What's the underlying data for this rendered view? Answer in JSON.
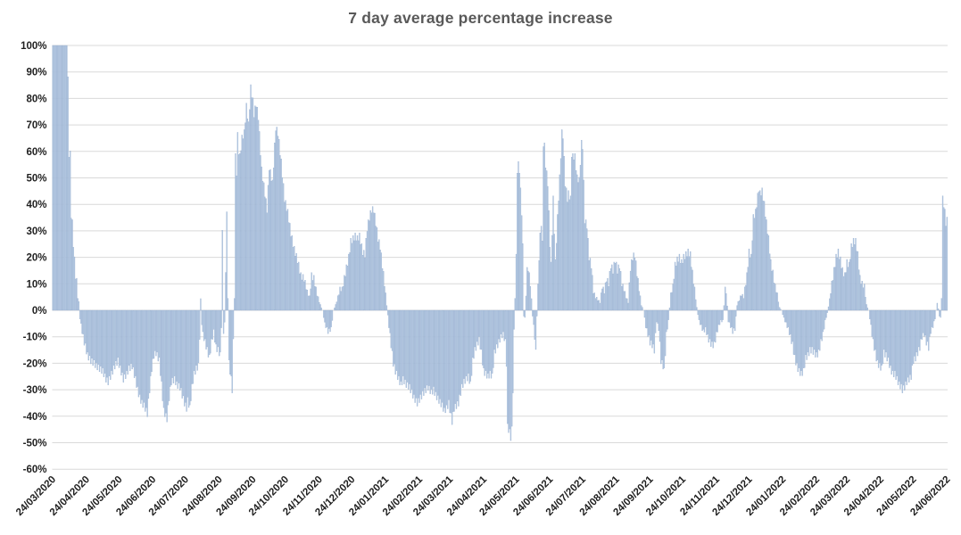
{
  "chart_data": {
    "type": "bar",
    "title": "7 day average percentage increase",
    "series_name": "7 day average percentage increase",
    "xlabel": "",
    "ylabel": "",
    "ylim": [
      -60,
      100
    ],
    "y_step_pct": 10,
    "y_tick_labels": [
      "100%",
      "90%",
      "80%",
      "70%",
      "60%",
      "50%",
      "40%",
      "30%",
      "20%",
      "10%",
      "0%",
      "-10%",
      "-20%",
      "-30%",
      "-40%",
      "-50%",
      "-60%"
    ],
    "x_tick_labels": [
      "24/03/2020",
      "24/04/2020",
      "24/05/2020",
      "24/06/2020",
      "24/07/2020",
      "24/08/2020",
      "24/09/2020",
      "24/10/2020",
      "24/11/2020",
      "24/12/2020",
      "24/01/2021",
      "24/02/2021",
      "24/03/2021",
      "24/04/2021",
      "24/05/2021",
      "24/06/2021",
      "24/07/2021",
      "24/08/2021",
      "24/09/2021",
      "24/10/2021",
      "24/11/2021",
      "24/12/2021",
      "24/01/2022",
      "24/02/2022",
      "24/03/2022",
      "24/04/2022",
      "24/05/2022",
      "24/06/2022"
    ],
    "x_start_date": "24/03/2020",
    "x_end_date": "24/06/2022",
    "x_frequency": "daily",
    "num_points": 823,
    "grid": true,
    "legend_position": "none",
    "clipped_at_top_note": "first 14 daily bars exceed the axis maximum and are clipped at 100%",
    "interpolation_note": "percent values read from chart; daily bars linearly interpolated between keypoints [day_index, percent]",
    "daily_keypoints": [
      [
        0,
        100
      ],
      [
        13,
        100
      ],
      [
        14,
        87
      ],
      [
        15,
        59
      ],
      [
        16,
        59
      ],
      [
        17,
        36
      ],
      [
        18,
        33
      ],
      [
        19,
        25
      ],
      [
        20,
        19
      ],
      [
        21,
        13
      ],
      [
        22,
        11
      ],
      [
        23,
        5
      ],
      [
        24,
        3
      ],
      [
        25,
        -3
      ],
      [
        27,
        -8
      ],
      [
        29,
        -12
      ],
      [
        32,
        -17
      ],
      [
        35,
        -19
      ],
      [
        38,
        -20
      ],
      [
        40,
        -21
      ],
      [
        43,
        -22
      ],
      [
        46,
        -23
      ],
      [
        49,
        -26
      ],
      [
        51,
        -27
      ],
      [
        54,
        -24
      ],
      [
        57,
        -21
      ],
      [
        60,
        -19
      ],
      [
        62,
        -22
      ],
      [
        65,
        -26
      ],
      [
        68,
        -24
      ],
      [
        70,
        -22
      ],
      [
        73,
        -21
      ],
      [
        76,
        -26
      ],
      [
        78,
        -30
      ],
      [
        80,
        -33
      ],
      [
        82,
        -35
      ],
      [
        84,
        -36
      ],
      [
        87,
        -39
      ],
      [
        89,
        -30
      ],
      [
        91,
        -22
      ],
      [
        93,
        -17
      ],
      [
        95,
        -16
      ],
      [
        98,
        -19
      ],
      [
        100,
        -28
      ],
      [
        102,
        -38
      ],
      [
        105,
        -41
      ],
      [
        107,
        -33
      ],
      [
        109,
        -27
      ],
      [
        112,
        -26
      ],
      [
        114,
        -28
      ],
      [
        117,
        -29
      ],
      [
        119,
        -32
      ],
      [
        121,
        -35
      ],
      [
        123,
        -37
      ],
      [
        124,
        -34
      ],
      [
        126,
        -37
      ],
      [
        128,
        -29
      ],
      [
        130,
        -24
      ],
      [
        132,
        -22
      ],
      [
        134,
        -21
      ],
      [
        135,
        -10
      ],
      [
        136,
        4
      ],
      [
        137,
        -5
      ],
      [
        138,
        -9
      ],
      [
        140,
        -12
      ],
      [
        142,
        -15
      ],
      [
        144,
        -18
      ],
      [
        146,
        -12
      ],
      [
        148,
        -8
      ],
      [
        149,
        -11
      ],
      [
        150,
        -14
      ],
      [
        152,
        -15
      ],
      [
        154,
        -17
      ],
      [
        155,
        -6
      ],
      [
        156,
        29
      ],
      [
        157,
        -8
      ],
      [
        158,
        -5
      ],
      [
        160,
        36
      ],
      [
        161,
        5
      ],
      [
        162,
        -20
      ],
      [
        164,
        -26
      ],
      [
        165,
        -30
      ],
      [
        166,
        -12
      ],
      [
        167,
        5
      ],
      [
        168,
        58
      ],
      [
        169,
        52
      ],
      [
        170,
        66
      ],
      [
        171,
        60
      ],
      [
        172,
        58
      ],
      [
        174,
        65
      ],
      [
        176,
        67
      ],
      [
        178,
        77
      ],
      [
        180,
        70
      ],
      [
        182,
        84
      ],
      [
        184,
        79
      ],
      [
        185,
        74
      ],
      [
        187,
        78
      ],
      [
        189,
        73
      ],
      [
        192,
        53
      ],
      [
        195,
        44
      ],
      [
        197,
        38
      ],
      [
        199,
        54
      ],
      [
        202,
        48
      ],
      [
        205,
        69
      ],
      [
        207,
        67
      ],
      [
        210,
        56
      ],
      [
        213,
        42
      ],
      [
        216,
        37
      ],
      [
        219,
        29
      ],
      [
        222,
        23
      ],
      [
        225,
        19
      ],
      [
        228,
        13
      ],
      [
        231,
        12
      ],
      [
        234,
        7
      ],
      [
        236,
        5
      ],
      [
        238,
        13
      ],
      [
        240,
        12
      ],
      [
        243,
        6
      ],
      [
        246,
        2
      ],
      [
        248,
        0
      ],
      [
        250,
        -5
      ],
      [
        253,
        -8
      ],
      [
        256,
        -7
      ],
      [
        258,
        0
      ],
      [
        260,
        2
      ],
      [
        262,
        5
      ],
      [
        264,
        8
      ],
      [
        266,
        8
      ],
      [
        268,
        12
      ],
      [
        270,
        16
      ],
      [
        272,
        20
      ],
      [
        274,
        26
      ],
      [
        276,
        27
      ],
      [
        278,
        28
      ],
      [
        280,
        27
      ],
      [
        282,
        28
      ],
      [
        285,
        22
      ],
      [
        287,
        21
      ],
      [
        289,
        31
      ],
      [
        291,
        35
      ],
      [
        293,
        38
      ],
      [
        295,
        38
      ],
      [
        297,
        33
      ],
      [
        299,
        27
      ],
      [
        301,
        24
      ],
      [
        303,
        17
      ],
      [
        305,
        10
      ],
      [
        307,
        2
      ],
      [
        309,
        -6
      ],
      [
        311,
        -13
      ],
      [
        313,
        -20
      ],
      [
        315,
        -23
      ],
      [
        317,
        -25
      ],
      [
        320,
        -28
      ],
      [
        322,
        -26
      ],
      [
        325,
        -28
      ],
      [
        328,
        -29
      ],
      [
        332,
        -33
      ],
      [
        335,
        -35
      ],
      [
        338,
        -33
      ],
      [
        341,
        -31
      ],
      [
        345,
        -29
      ],
      [
        348,
        -31
      ],
      [
        350,
        -30
      ],
      [
        352,
        -32
      ],
      [
        355,
        -34
      ],
      [
        358,
        -36
      ],
      [
        360,
        -38
      ],
      [
        362,
        -37
      ],
      [
        364,
        -35
      ],
      [
        366,
        -40
      ],
      [
        367,
        -42
      ],
      [
        369,
        -37
      ],
      [
        371,
        -36
      ],
      [
        373,
        -35
      ],
      [
        376,
        -29
      ],
      [
        378,
        -27
      ],
      [
        380,
        -26
      ],
      [
        382,
        -25
      ],
      [
        384,
        -28
      ],
      [
        386,
        -19
      ],
      [
        388,
        -15
      ],
      [
        390,
        -13
      ],
      [
        392,
        -11
      ],
      [
        394,
        -16
      ],
      [
        396,
        -23
      ],
      [
        398,
        -24
      ],
      [
        400,
        -25
      ],
      [
        402,
        -24
      ],
      [
        404,
        -25
      ],
      [
        406,
        -16
      ],
      [
        408,
        -14
      ],
      [
        410,
        -12
      ],
      [
        412,
        -10
      ],
      [
        414,
        -9
      ],
      [
        416,
        -12
      ],
      [
        417,
        -20
      ],
      [
        418,
        -44
      ],
      [
        419,
        -45
      ],
      [
        420,
        -46
      ],
      [
        421,
        -48
      ],
      [
        422,
        -45
      ],
      [
        423,
        -30
      ],
      [
        424,
        -8
      ],
      [
        425,
        5
      ],
      [
        426,
        20
      ],
      [
        427,
        53
      ],
      [
        428,
        55
      ],
      [
        429,
        53
      ],
      [
        430,
        45
      ],
      [
        431,
        37
      ],
      [
        432,
        24
      ],
      [
        433,
        -2
      ],
      [
        434,
        -3
      ],
      [
        436,
        15
      ],
      [
        437,
        16
      ],
      [
        439,
        10
      ],
      [
        441,
        -2
      ],
      [
        443,
        -10
      ],
      [
        444,
        -16
      ],
      [
        445,
        -2
      ],
      [
        447,
        20
      ],
      [
        448,
        28
      ],
      [
        449,
        33
      ],
      [
        450,
        25
      ],
      [
        451,
        63
      ],
      [
        452,
        62
      ],
      [
        453,
        55
      ],
      [
        455,
        48
      ],
      [
        457,
        25
      ],
      [
        458,
        17
      ],
      [
        460,
        42
      ],
      [
        461,
        30
      ],
      [
        462,
        18
      ],
      [
        464,
        35
      ],
      [
        466,
        50
      ],
      [
        468,
        67
      ],
      [
        469,
        66
      ],
      [
        471,
        48
      ],
      [
        473,
        42
      ],
      [
        474,
        44
      ],
      [
        476,
        42
      ],
      [
        477,
        59
      ],
      [
        478,
        58
      ],
      [
        480,
        58
      ],
      [
        482,
        50
      ],
      [
        484,
        49
      ],
      [
        486,
        63
      ],
      [
        487,
        62
      ],
      [
        489,
        34
      ],
      [
        491,
        32
      ],
      [
        493,
        20
      ],
      [
        495,
        17
      ],
      [
        497,
        7
      ],
      [
        499,
        5
      ],
      [
        501,
        4
      ],
      [
        503,
        3
      ],
      [
        505,
        9
      ],
      [
        507,
        7
      ],
      [
        509,
        12
      ],
      [
        511,
        10
      ],
      [
        513,
        17
      ],
      [
        515,
        15
      ],
      [
        517,
        19
      ],
      [
        519,
        15
      ],
      [
        521,
        17
      ],
      [
        523,
        10
      ],
      [
        525,
        8
      ],
      [
        527,
        5
      ],
      [
        529,
        3
      ],
      [
        531,
        16
      ],
      [
        533,
        20
      ],
      [
        535,
        21
      ],
      [
        537,
        14
      ],
      [
        539,
        8
      ],
      [
        541,
        2
      ],
      [
        543,
        0
      ],
      [
        545,
        -6
      ],
      [
        547,
        -9
      ],
      [
        549,
        -12
      ],
      [
        551,
        -13
      ],
      [
        553,
        -15
      ],
      [
        555,
        -4
      ],
      [
        557,
        -7
      ],
      [
        559,
        -19
      ],
      [
        561,
        -21
      ],
      [
        562,
        -23
      ],
      [
        564,
        -9
      ],
      [
        566,
        -4
      ],
      [
        568,
        6
      ],
      [
        570,
        9
      ],
      [
        572,
        17
      ],
      [
        574,
        19
      ],
      [
        576,
        20
      ],
      [
        578,
        18
      ],
      [
        580,
        20
      ],
      [
        582,
        21
      ],
      [
        584,
        22
      ],
      [
        586,
        21
      ],
      [
        588,
        14
      ],
      [
        590,
        8
      ],
      [
        592,
        1
      ],
      [
        594,
        -4
      ],
      [
        596,
        -6
      ],
      [
        598,
        -8
      ],
      [
        600,
        -7
      ],
      [
        602,
        -10
      ],
      [
        604,
        -12
      ],
      [
        606,
        -13
      ],
      [
        608,
        -13
      ],
      [
        610,
        -9
      ],
      [
        612,
        -6
      ],
      [
        614,
        -4
      ],
      [
        616,
        -4
      ],
      [
        618,
        8
      ],
      [
        619,
        7
      ],
      [
        621,
        -4
      ],
      [
        623,
        -6
      ],
      [
        625,
        -8
      ],
      [
        627,
        -7
      ],
      [
        629,
        2
      ],
      [
        631,
        4
      ],
      [
        633,
        6
      ],
      [
        635,
        5
      ],
      [
        636,
        8
      ],
      [
        638,
        13
      ],
      [
        640,
        22
      ],
      [
        642,
        20
      ],
      [
        644,
        35
      ],
      [
        646,
        37
      ],
      [
        648,
        43
      ],
      [
        649,
        46
      ],
      [
        650,
        44
      ],
      [
        652,
        45
      ],
      [
        654,
        40
      ],
      [
        656,
        33
      ],
      [
        658,
        27
      ],
      [
        660,
        18
      ],
      [
        662,
        14
      ],
      [
        664,
        9
      ],
      [
        666,
        6
      ],
      [
        668,
        1
      ],
      [
        670,
        0
      ],
      [
        672,
        -3
      ],
      [
        674,
        -5
      ],
      [
        676,
        -7
      ],
      [
        678,
        -10
      ],
      [
        680,
        -13
      ],
      [
        682,
        -18
      ],
      [
        684,
        -21
      ],
      [
        686,
        -23
      ],
      [
        688,
        -24
      ],
      [
        690,
        -23
      ],
      [
        692,
        -18
      ],
      [
        694,
        -17
      ],
      [
        696,
        -15
      ],
      [
        698,
        -15
      ],
      [
        700,
        -16
      ],
      [
        702,
        -17
      ],
      [
        704,
        -16
      ],
      [
        706,
        -12
      ],
      [
        708,
        -9
      ],
      [
        710,
        -4
      ],
      [
        712,
        -1
      ],
      [
        714,
        4
      ],
      [
        716,
        10
      ],
      [
        718,
        15
      ],
      [
        720,
        20
      ],
      [
        722,
        22
      ],
      [
        724,
        19
      ],
      [
        726,
        15
      ],
      [
        728,
        13
      ],
      [
        730,
        18
      ],
      [
        732,
        17
      ],
      [
        734,
        24
      ],
      [
        736,
        26
      ],
      [
        738,
        26
      ],
      [
        740,
        21
      ],
      [
        742,
        12
      ],
      [
        744,
        10
      ],
      [
        746,
        9
      ],
      [
        748,
        2
      ],
      [
        750,
        0
      ],
      [
        752,
        -6
      ],
      [
        754,
        -12
      ],
      [
        756,
        -16
      ],
      [
        758,
        -20
      ],
      [
        760,
        -21
      ],
      [
        762,
        -22
      ],
      [
        764,
        -16
      ],
      [
        766,
        -17
      ],
      [
        768,
        -19
      ],
      [
        770,
        -22
      ],
      [
        772,
        -24
      ],
      [
        774,
        -24
      ],
      [
        776,
        -26
      ],
      [
        778,
        -28
      ],
      [
        780,
        -29
      ],
      [
        781,
        -30
      ],
      [
        783,
        -29
      ],
      [
        785,
        -27
      ],
      [
        787,
        -26
      ],
      [
        789,
        -25
      ],
      [
        791,
        -19
      ],
      [
        793,
        -18
      ],
      [
        795,
        -16
      ],
      [
        797,
        -14
      ],
      [
        799,
        -10
      ],
      [
        801,
        -9
      ],
      [
        803,
        -12
      ],
      [
        805,
        -14
      ],
      [
        807,
        -8
      ],
      [
        809,
        -6
      ],
      [
        811,
        -3
      ],
      [
        813,
        3
      ],
      [
        815,
        -2
      ],
      [
        816,
        -3
      ],
      [
        817,
        5
      ],
      [
        818,
        42
      ],
      [
        819,
        40
      ],
      [
        820,
        37
      ],
      [
        821,
        33
      ],
      [
        822,
        34
      ]
    ],
    "render_texture_jitter_pct": 1.2,
    "colors": {
      "background": "#ffffff",
      "bar_fill": "#b9cce4",
      "bar_stroke": "#8fa9cc",
      "gridline": "#d9d9d9",
      "title_color": "#595959",
      "axis_label_color": "#1f1f1f"
    }
  }
}
